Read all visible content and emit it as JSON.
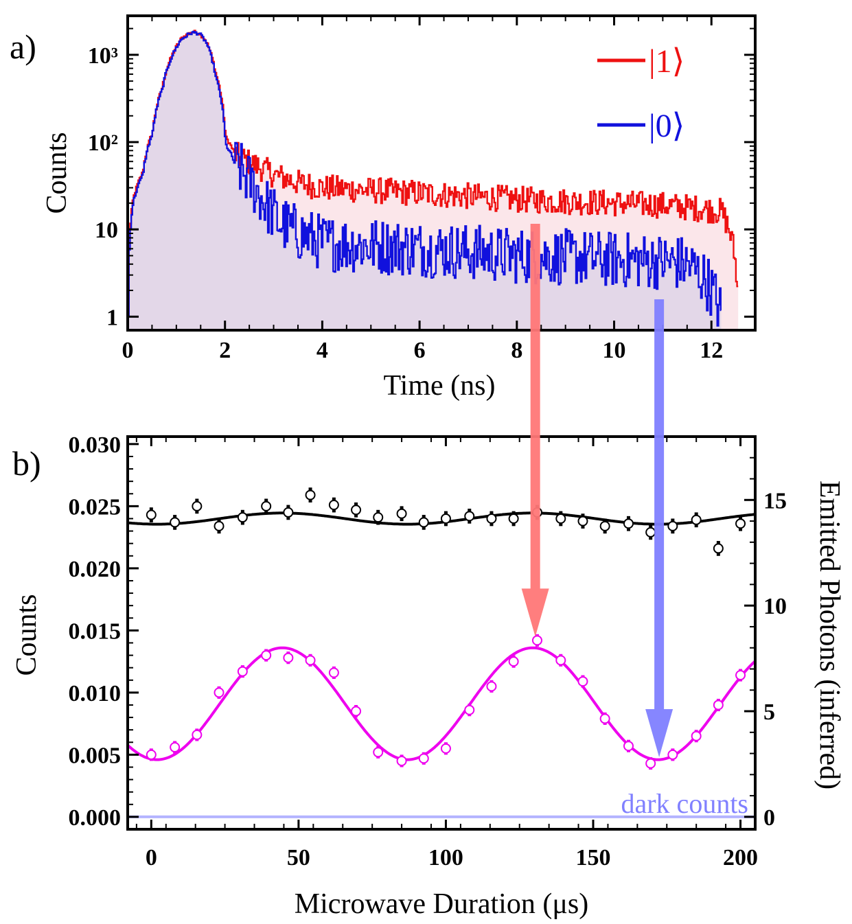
{
  "chart_data": [
    {
      "panel": "a)",
      "type": "line",
      "y_scale": "log",
      "xlabel": "Time (ns)",
      "ylabel": "Counts",
      "xlim": [
        0,
        12.9
      ],
      "ylim": [
        0.7,
        2800
      ],
      "x_ticks": [
        0,
        2,
        4,
        6,
        8,
        10,
        12
      ],
      "y_ticks": [
        {
          "value": 1,
          "label": "1"
        },
        {
          "value": 10,
          "label": "10"
        },
        {
          "value": 100,
          "label": "10²"
        },
        {
          "value": 1000,
          "label": "10³"
        }
      ],
      "legend": [
        "|1⟩",
        "|0⟩"
      ],
      "legend_position": "top-right",
      "series": [
        {
          "name": "|1⟩",
          "color": "#ee1111",
          "fill": "#fbe6ea",
          "x": [
            0,
            0.05,
            0.1,
            0.3,
            0.5,
            0.7,
            0.9,
            1.1,
            1.3,
            1.45,
            1.6,
            1.8,
            2.0,
            2.2,
            2.5,
            3.0,
            3.5,
            4.0,
            5.0,
            6.0,
            7.0,
            8.0,
            9.0,
            10.0,
            11.0,
            11.9,
            12.2,
            12.4,
            12.55
          ],
          "y": [
            1,
            12,
            22,
            45,
            130,
            420,
            980,
            1550,
            1820,
            1800,
            1450,
            620,
            115,
            72,
            58,
            42,
            34,
            30,
            28,
            26,
            24,
            22,
            21,
            20,
            19,
            17,
            16,
            8,
            1
          ]
        },
        {
          "name": "|0⟩",
          "color": "#1111dd",
          "fill": "#e2d6e8",
          "x": [
            0,
            0.05,
            0.1,
            0.3,
            0.5,
            0.7,
            0.9,
            1.1,
            1.3,
            1.45,
            1.6,
            1.8,
            2.0,
            2.2,
            2.5,
            2.8,
            3.1,
            3.5,
            4.0,
            5.0,
            6.0,
            7.0,
            8.0,
            9.0,
            10.0,
            11.0,
            11.5,
            11.9,
            12.2
          ],
          "y": [
            1,
            11,
            20,
            42,
            125,
            400,
            960,
            1520,
            1790,
            1780,
            1400,
            560,
            95,
            55,
            35,
            20,
            12,
            9,
            7,
            6.5,
            6,
            5.5,
            5,
            4.8,
            4.5,
            4.3,
            4,
            2.5,
            1
          ]
        }
      ]
    },
    {
      "panel": "b)",
      "type": "scatter",
      "xlabel": "Microwave Duration (μs)",
      "ylabel": "Counts",
      "y2label": "Emitted Photons (inferred)",
      "xlim": [
        -8,
        205
      ],
      "ylim": [
        -0.001,
        0.0306
      ],
      "y2_per_count": 588.2,
      "x_ticks": [
        0,
        50,
        100,
        150,
        200
      ],
      "y_ticks": [
        {
          "value": 0.0,
          "label": "0.000"
        },
        {
          "value": 0.005,
          "label": "0.005"
        },
        {
          "value": 0.01,
          "label": "0.010"
        },
        {
          "value": 0.015,
          "label": "0.015"
        },
        {
          "value": 0.02,
          "label": "0.020"
        },
        {
          "value": 0.025,
          "label": "0.025"
        },
        {
          "value": 0.03,
          "label": "0.030"
        }
      ],
      "y2_ticks": [
        {
          "value": 0,
          "label": "0"
        },
        {
          "value": 5,
          "label": "5"
        },
        {
          "value": 10,
          "label": "10"
        },
        {
          "value": 15,
          "label": "15"
        }
      ],
      "dark_counts_label": "dark counts",
      "dark_counts_level": 0.0,
      "series": [
        {
          "name": "black data",
          "color": "#000000",
          "err": 0.0006,
          "x": [
            0,
            8,
            15.5,
            23,
            31,
            39,
            46.5,
            54,
            62,
            69.5,
            77,
            85,
            92.5,
            100,
            108,
            115.5,
            123,
            131,
            139,
            146.5,
            154,
            162,
            169.5,
            177,
            185,
            192.5,
            200
          ],
          "y": [
            0.0243,
            0.0237,
            0.025,
            0.0234,
            0.0241,
            0.025,
            0.0245,
            0.0259,
            0.0251,
            0.0247,
            0.0241,
            0.0244,
            0.0237,
            0.024,
            0.0242,
            0.024,
            0.024,
            0.0245,
            0.024,
            0.0238,
            0.0234,
            0.0236,
            0.0229,
            0.0234,
            0.0239,
            0.0216,
            0.0236
          ]
        },
        {
          "name": "magenta data",
          "color": "#ee00ee",
          "err": 0.0005,
          "x": [
            0,
            8,
            15.5,
            23,
            31,
            39,
            46.5,
            54,
            62,
            69.5,
            77,
            85,
            92.5,
            100,
            108,
            115.5,
            123,
            131,
            139,
            146.5,
            154,
            162,
            169.5,
            177,
            185,
            192.5,
            200
          ],
          "y": [
            0.005,
            0.0056,
            0.0066,
            0.01,
            0.0117,
            0.013,
            0.0128,
            0.0126,
            0.0116,
            0.0085,
            0.0052,
            0.0045,
            0.0047,
            0.0055,
            0.0086,
            0.0105,
            0.0125,
            0.0142,
            0.0126,
            0.0109,
            0.0079,
            0.0057,
            0.0043,
            0.005,
            0.0065,
            0.009,
            0.0114
          ]
        }
      ],
      "fits": [
        {
          "name": "black fit",
          "color": "#000000",
          "model": "offset - amp*cos(2*pi*(x - phase)/period)",
          "offset": 0.024,
          "amp": 0.00045,
          "period": 85,
          "phase": 2
        },
        {
          "name": "magenta fit",
          "color": "#ee00ee",
          "model": "offset - amp*cos(2*pi*(x - phase)/period)",
          "offset": 0.0091,
          "amp": 0.0045,
          "period": 85,
          "phase": 2
        }
      ]
    }
  ],
  "annotations": {
    "red_arrow": {
      "from_panel_a_x": 8.4,
      "to_panel_b_x": 130,
      "to_panel_b_y": 0.0145,
      "color": "#ff7777"
    },
    "blue_arrow": {
      "from_panel_a_x": 10.95,
      "to_panel_b_x": 172,
      "to_panel_b_y": 0.0048,
      "color": "#8080ff"
    }
  }
}
